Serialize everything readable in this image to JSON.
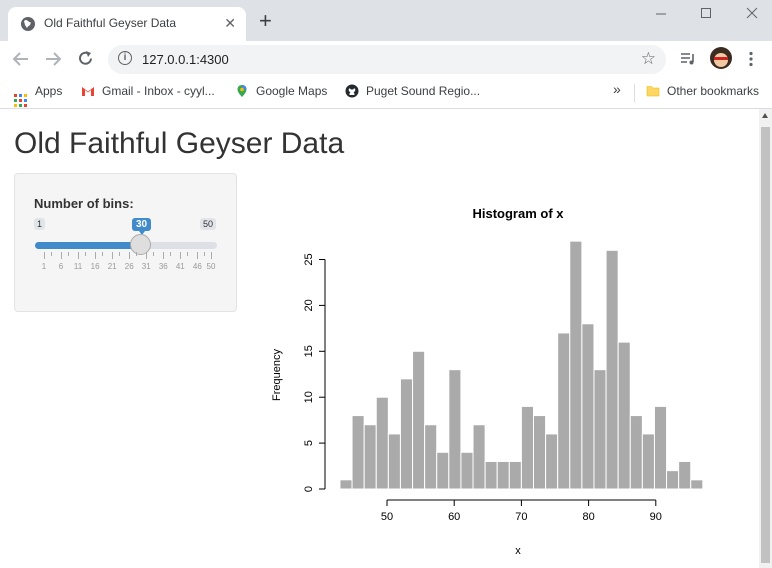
{
  "browser": {
    "tab_title": "Old Faithful Geyser Data",
    "close_symbol": "✕",
    "new_tab_symbol": "+",
    "url": "127.0.0.1:4300",
    "bookmarks": [
      {
        "label": "Apps",
        "icon": "apps-grid-icon"
      },
      {
        "label": "Gmail - Inbox - cyyl...",
        "icon": "gmail-icon"
      },
      {
        "label": "Google Maps",
        "icon": "maps-pin-icon"
      },
      {
        "label": "Puget Sound Regio...",
        "icon": "github-icon"
      }
    ],
    "more_bookmarks": "»",
    "other_bookmarks": "Other bookmarks"
  },
  "page": {
    "title": "Old Faithful Geyser Data",
    "slider": {
      "label": "Number of bins:",
      "min": 1,
      "max": 50,
      "value": 30,
      "min_label": "1",
      "max_label": "50",
      "value_label": "30",
      "ticks": [
        "1",
        "6",
        "11",
        "16",
        "21",
        "26",
        "31",
        "36",
        "41",
        "46",
        "50"
      ]
    }
  },
  "chart_data": {
    "type": "bar",
    "title": "Histogram of x",
    "xlabel": "x",
    "ylabel": "Frequency",
    "bins_start": 43,
    "bin_width": 1.8,
    "values": [
      1,
      8,
      7,
      10,
      6,
      12,
      15,
      7,
      4,
      13,
      4,
      7,
      3,
      3,
      3,
      9,
      8,
      6,
      17,
      27,
      18,
      13,
      26,
      16,
      8,
      6,
      9,
      2,
      3,
      1
    ],
    "xticks": [
      50,
      60,
      70,
      80,
      90
    ],
    "yticks": [
      0,
      5,
      10,
      15,
      20,
      25
    ],
    "ylim": [
      0,
      27
    ],
    "bar_color": "#aaaaaa"
  }
}
